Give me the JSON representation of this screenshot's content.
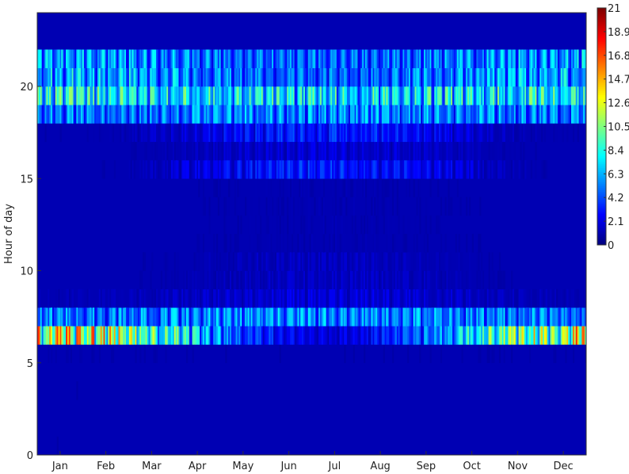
{
  "chart_data": {
    "type": "heatmap",
    "title": "",
    "xlabel": "",
    "ylabel": "Hour of day",
    "x_tick_labels": [
      "Jan",
      "Feb",
      "Mar",
      "Apr",
      "May",
      "Jun",
      "Jul",
      "Aug",
      "Sep",
      "Oct",
      "Nov",
      "Dec"
    ],
    "y_ticks": [
      0,
      5,
      10,
      15,
      20
    ],
    "ylim": [
      0,
      24
    ],
    "days": 365,
    "colormap": "jet",
    "colorbar": {
      "min": 0,
      "max": 21,
      "ticks": [
        21,
        18.9,
        16.8,
        14.7,
        12.6,
        10.5,
        8.4,
        6.3,
        4.2,
        2.1,
        0
      ],
      "tick_labels": [
        "21",
        "18.9",
        "16.8",
        "14.7",
        "12.6",
        "10.5",
        "8.4",
        "6.3",
        "4.2",
        "2.1",
        "0"
      ]
    },
    "hourly_profile": {
      "description_note_free": true,
      "hours": [
        0,
        1,
        2,
        3,
        4,
        5,
        6,
        7,
        8,
        9,
        10,
        11,
        12,
        13,
        14,
        15,
        16,
        17,
        18,
        19,
        20,
        21,
        22,
        23
      ],
      "winter": [
        0.6,
        0.6,
        0.6,
        0.6,
        0.6,
        0.7,
        13.5,
        5.5,
        1.0,
        0.4,
        0.4,
        0.4,
        0.4,
        0.4,
        0.4,
        0.4,
        0.4,
        0.6,
        5.5,
        8.5,
        7.0,
        6.5,
        0.3,
        0.3
      ],
      "summer": [
        0.5,
        0.5,
        0.5,
        0.5,
        0.5,
        0.6,
        2.2,
        6.0,
        2.0,
        1.5,
        1.4,
        0.9,
        0.9,
        0.9,
        0.9,
        3.5,
        2.0,
        3.5,
        6.0,
        8.0,
        5.0,
        5.0,
        0.3,
        0.3
      ]
    }
  }
}
